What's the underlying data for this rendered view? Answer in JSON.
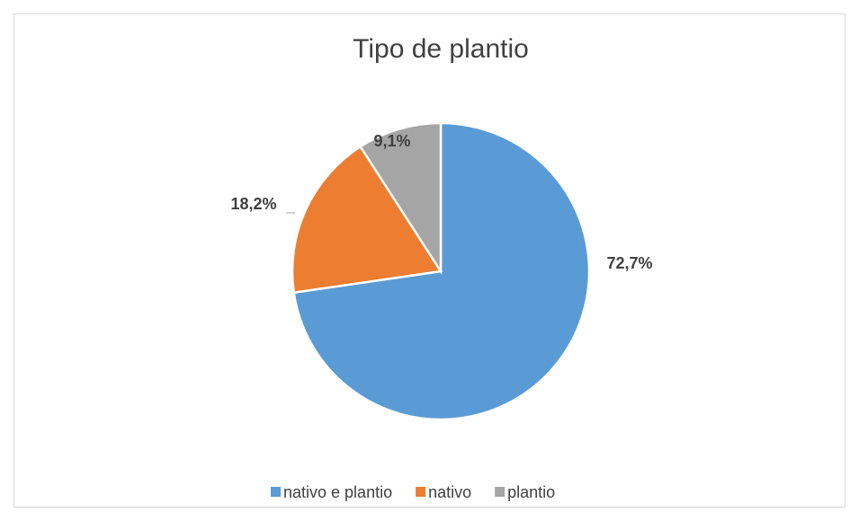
{
  "chart_data": {
    "type": "pie",
    "title": "Tipo de plantio",
    "categories": [
      "nativo e plantio",
      "nativo",
      "plantio"
    ],
    "values": [
      72.7,
      18.2,
      9.1
    ],
    "value_labels": [
      "72,7%",
      "18,2%",
      "9,1%"
    ],
    "colors": [
      "#5b9bd5",
      "#ed7d31",
      "#a5a5a5"
    ],
    "legend": "bottom"
  }
}
